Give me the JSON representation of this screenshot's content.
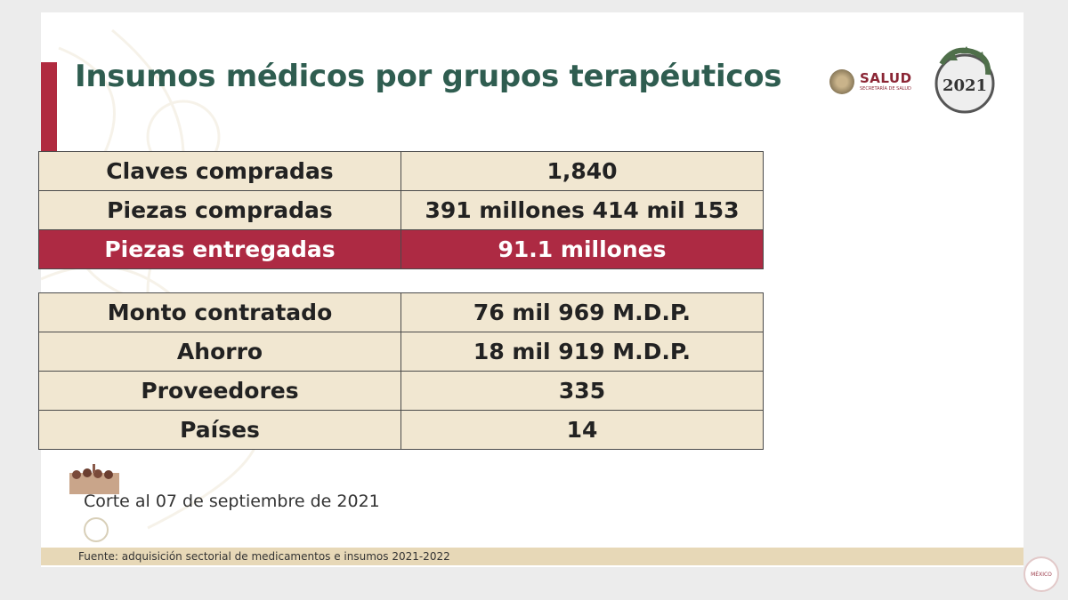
{
  "header": {
    "title": "Insumos médicos por grupos terapéuticos",
    "salud_word": "SALUD",
    "salud_sub": "SECRETARÍA DE SALUD",
    "mexico_year": "2021"
  },
  "table_supply": [
    {
      "label": "Claves compradas",
      "value": "1,840",
      "highlight": false
    },
    {
      "label": "Piezas compradas",
      "value": "391 millones 414 mil 153",
      "highlight": false
    },
    {
      "label": "Piezas entregadas",
      "value": "91.1 millones",
      "highlight": true
    }
  ],
  "table_contract": [
    {
      "label": "Monto contratado",
      "value": "76 mil 969 M.D.P."
    },
    {
      "label": "Ahorro",
      "value": "18 mil 919 M.D.P."
    },
    {
      "label": "Proveedores",
      "value": "335"
    },
    {
      "label": "Países",
      "value": "14"
    }
  ],
  "note": "Corte al 07 de septiembre de 2021",
  "footer": {
    "source": "Fuente:  adquisición sectorial de medicamentos e insumos 2021-2022"
  },
  "colors": {
    "title": "#2f5d50",
    "accent_red": "#ad2a43",
    "cell_bg": "#f1e7d1",
    "footer_bar": "#e7d8b7"
  }
}
